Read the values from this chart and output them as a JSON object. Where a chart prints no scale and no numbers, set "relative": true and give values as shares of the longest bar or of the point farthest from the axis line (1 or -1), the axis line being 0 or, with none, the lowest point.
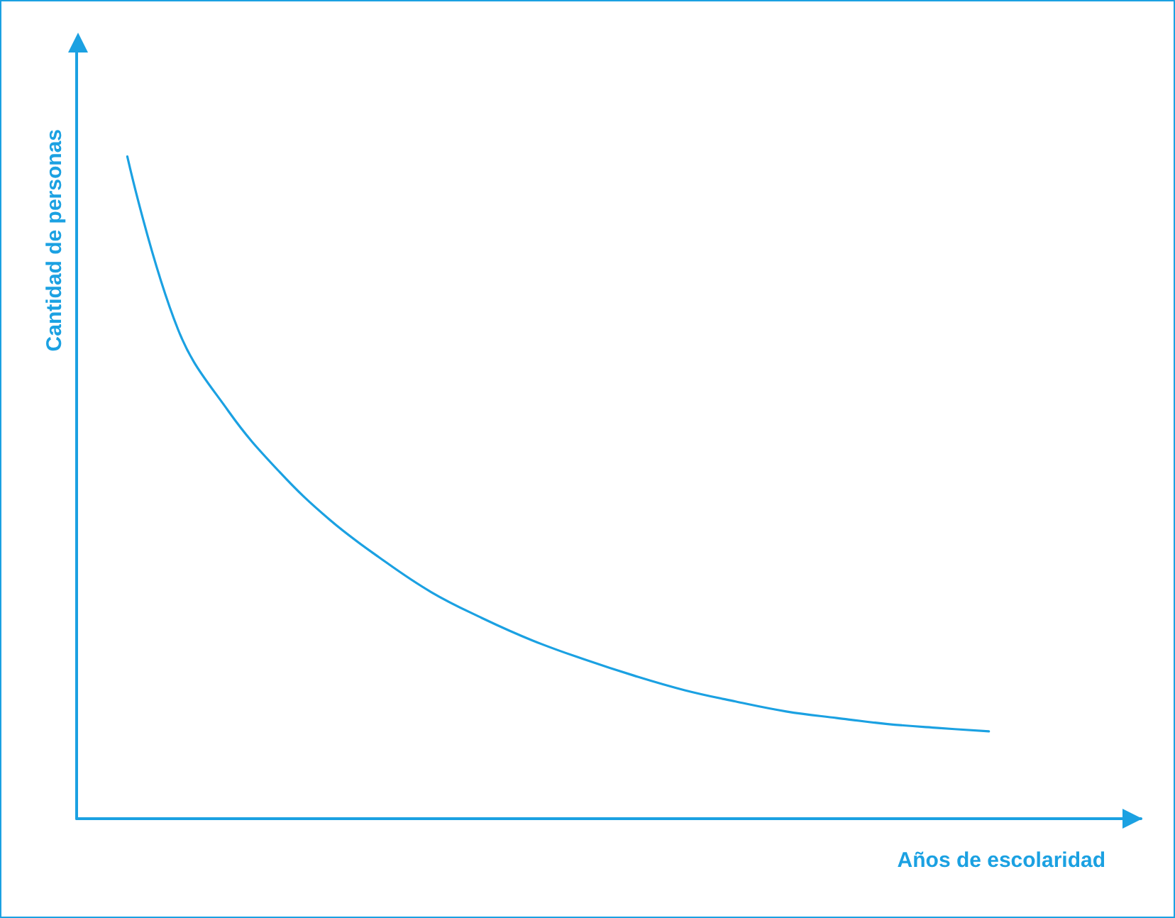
{
  "chart_data": {
    "type": "line",
    "relative": true,
    "xlabel": "Años de escolaridad",
    "ylabel": "Cantidad de personas",
    "color": "#1ba1e2",
    "marker": "none",
    "grid": false,
    "categories": [
      null,
      null,
      null,
      null,
      null,
      null,
      null,
      null,
      null,
      null,
      null,
      null,
      null,
      null,
      null,
      null,
      null,
      null,
      null,
      null,
      null,
      null
    ],
    "values": [
      null,
      1.0,
      0.739,
      0.615,
      0.524,
      0.451,
      0.393,
      0.342,
      0.303,
      0.269,
      0.241,
      0.216,
      0.194,
      0.177,
      0.162,
      0.152,
      0.143,
      0.137,
      0.132,
      null,
      null,
      null
    ]
  }
}
